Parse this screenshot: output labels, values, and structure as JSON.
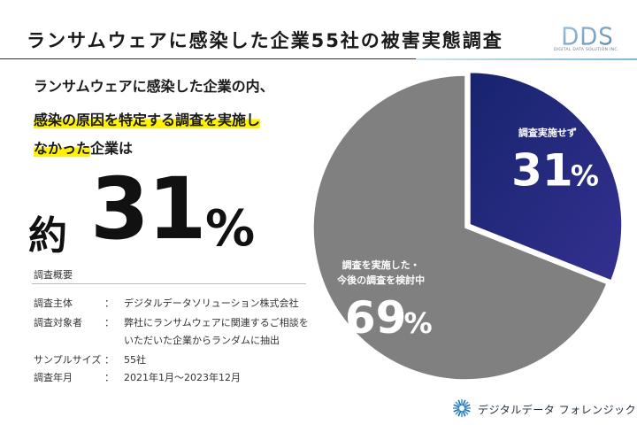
{
  "page": {
    "title": "ランサムウェアに感染した企業55社の被害実態調査"
  },
  "logo": {
    "mark": "DDS",
    "subtitle": "DIGITAL DATA SOLUTION INC."
  },
  "headline": {
    "line1": "ランサムウェアに感染した企業の内、",
    "line2": "感染の原因を特定する調査を実施し",
    "line3_highlight": "なかった",
    "line3_rest": "企業は"
  },
  "big_stat": {
    "prefix": "約",
    "number": "31",
    "unit": "%"
  },
  "survey": {
    "heading": "調査概要",
    "rows": [
      {
        "label": "調査主体",
        "colon": "：",
        "value": "デジタルデータソリューション株式会社"
      },
      {
        "label": "調査対象者",
        "colon": "：",
        "value": "弊社にランサムウェアに関連するご相談を"
      },
      {
        "label": "",
        "colon": "",
        "value": "いただいた企業からランダムに抽出"
      },
      {
        "label": "サンプルサイズ",
        "colon": "：",
        "value": "55社"
      },
      {
        "label": "調査年月",
        "colon": "：",
        "value": "2021年1月～2023年12月"
      }
    ]
  },
  "chart_data": {
    "type": "pie",
    "title": "",
    "slices": [
      {
        "label": "調査実施せず",
        "value": 31,
        "display": "31",
        "unit": "%",
        "color": "#1c2878",
        "color_end": "#2e2a8a",
        "label_lines": [
          "調査実施せず"
        ]
      },
      {
        "label": "調査を実施した・今後の調査を検討中",
        "value": 69,
        "display": "69",
        "unit": "%",
        "color": "#808080",
        "label_lines": [
          "調査を実施した・",
          "今後の調査を検討中"
        ]
      }
    ]
  },
  "footer": {
    "company": "デジタルデータ フォレンジック"
  },
  "colors": {
    "accent_highlight": "#fff200",
    "navy": "#1c2878",
    "gray": "#808080"
  }
}
